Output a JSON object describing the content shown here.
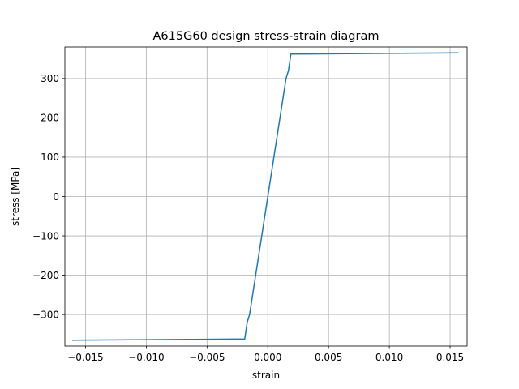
{
  "chart_data": {
    "type": "line",
    "title": "A615G60 design stress-strain diagram",
    "xlabel": "strain",
    "ylabel": "stress [MPa]",
    "xlim": [
      -0.0167,
      0.0164
    ],
    "ylim": [
      -380,
      380
    ],
    "grid": true,
    "x_ticks": [
      -0.015,
      -0.01,
      -0.005,
      0.0,
      0.005,
      0.01,
      0.015
    ],
    "x_tick_labels": [
      "−0.015",
      "−0.010",
      "−0.005",
      "0.000",
      "0.005",
      "0.010",
      "0.015"
    ],
    "y_ticks": [
      -300,
      -200,
      -100,
      0,
      100,
      200,
      300
    ],
    "y_tick_labels": [
      "−300",
      "−200",
      "−100",
      "0",
      "100",
      "200",
      "300"
    ],
    "series": [
      {
        "color": "#1f77b4",
        "x": [
          -0.0161,
          -0.0019,
          -0.0017,
          -0.0015,
          0.0,
          0.0015,
          0.0017,
          0.0019,
          0.0157
        ],
        "y": [
          -365,
          -362,
          -320,
          -300,
          0,
          300,
          320,
          362,
          365
        ]
      }
    ]
  }
}
